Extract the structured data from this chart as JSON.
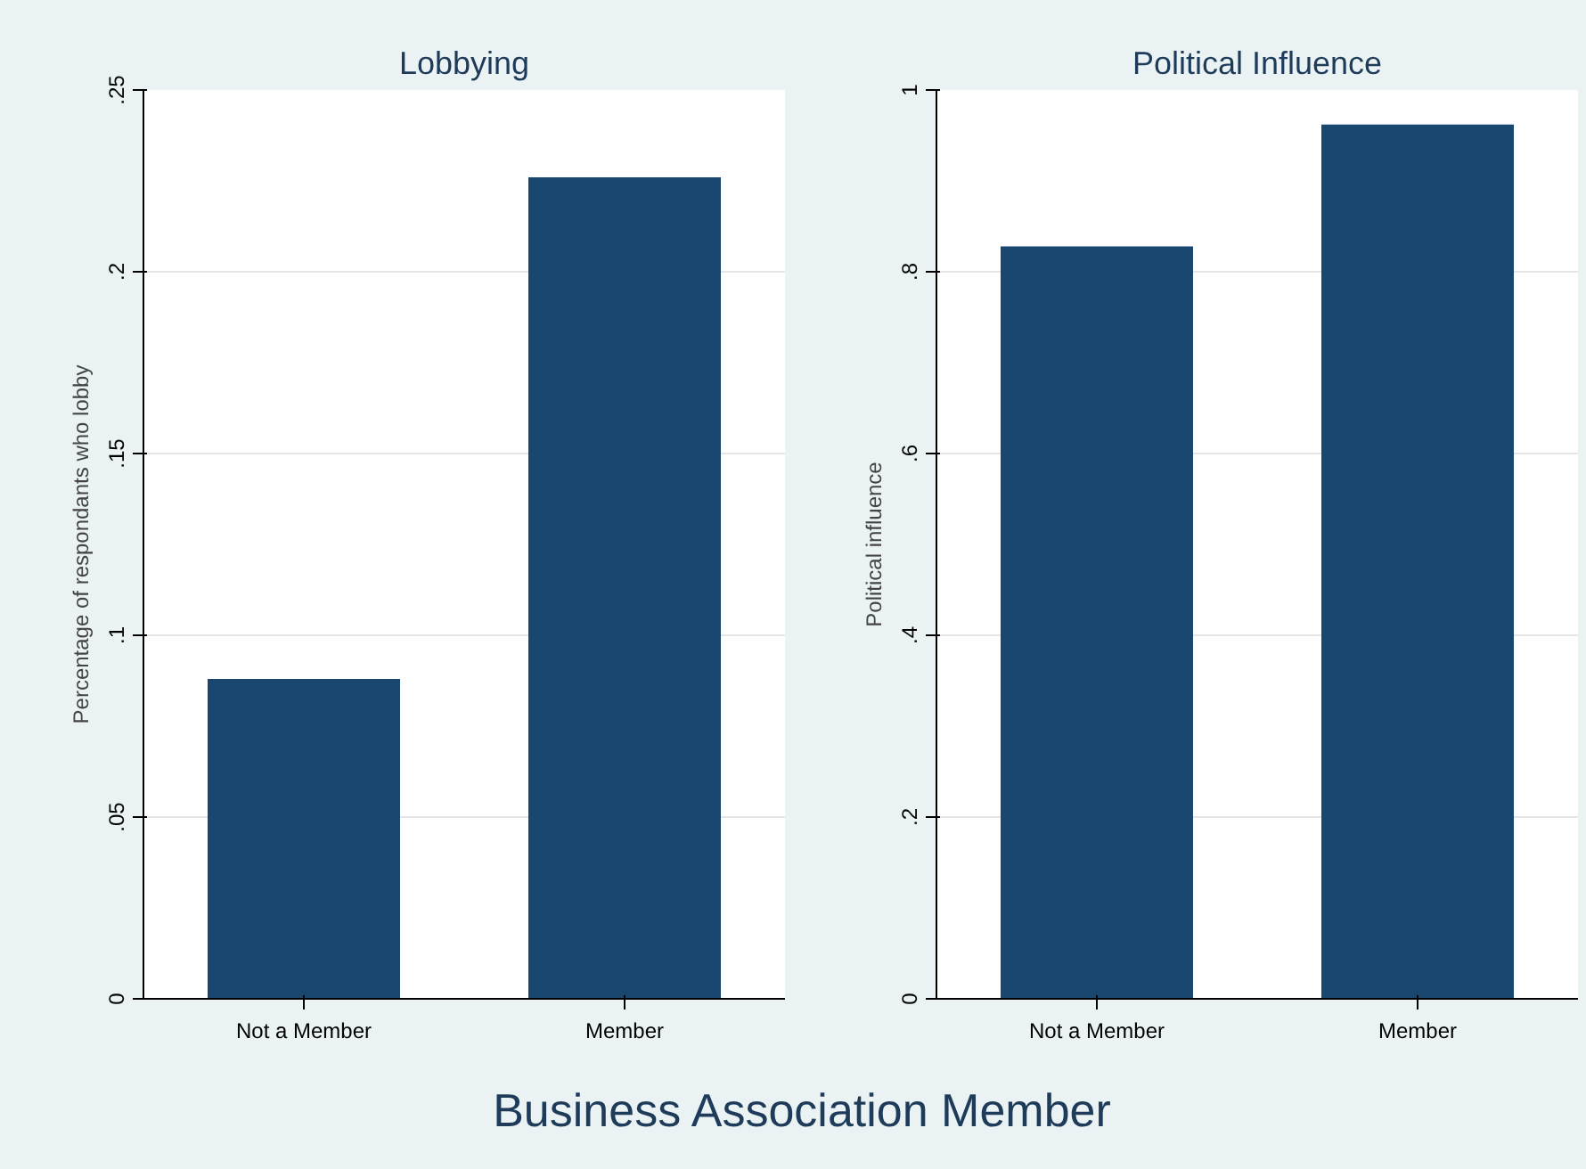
{
  "chart_data": [
    {
      "type": "bar",
      "title": "Lobbying",
      "ylabel": "Percentage of respondants who lobby",
      "categories": [
        "Not a Member",
        "Member"
      ],
      "values": [
        0.088,
        0.226
      ],
      "color": "#1a476f",
      "ylim": [
        0,
        0.25
      ],
      "yticks": [
        {
          "value": 0,
          "label": "0"
        },
        {
          "value": 0.05,
          "label": ".05"
        },
        {
          "value": 0.1,
          "label": ".1"
        },
        {
          "value": 0.15,
          "label": ".15"
        },
        {
          "value": 0.2,
          "label": ".2"
        },
        {
          "value": 0.25,
          "label": ".25"
        }
      ],
      "grid": "y",
      "annotations": [
        "Business Association Member"
      ]
    },
    {
      "type": "bar",
      "title": "Political Influence",
      "ylabel": "Political influence",
      "categories": [
        "Not a Member",
        "Member"
      ],
      "values": [
        0.828,
        0.962
      ],
      "color": "#1a476f",
      "ylim": [
        0,
        1
      ],
      "yticks": [
        {
          "value": 0,
          "label": "0"
        },
        {
          "value": 0.2,
          "label": ".2"
        },
        {
          "value": 0.4,
          "label": ".4"
        },
        {
          "value": 0.6,
          "label": ".6"
        },
        {
          "value": 0.8,
          "label": ".8"
        },
        {
          "value": 1,
          "label": "1"
        }
      ],
      "grid": "y"
    }
  ]
}
